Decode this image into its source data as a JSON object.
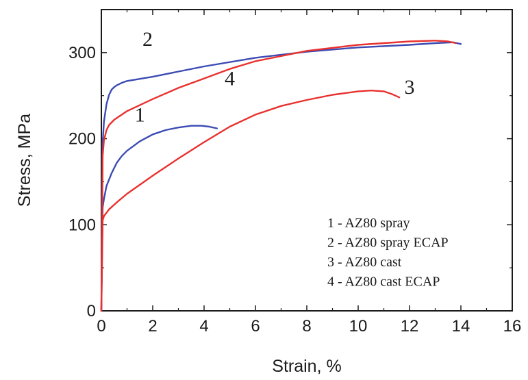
{
  "chart_data": {
    "type": "line",
    "title": "",
    "xlabel": "Strain, %",
    "ylabel": "Stress, MPa",
    "xlim": [
      0,
      16
    ],
    "ylim": [
      0,
      350
    ],
    "xticks": [
      0,
      2,
      4,
      6,
      8,
      10,
      12,
      14,
      16
    ],
    "yticks": [
      0,
      100,
      200,
      300
    ],
    "grid": false,
    "legend_position": "bottom-right",
    "legend": [
      "1 - AZ80 spray",
      "2 - AZ80 spray ECAP",
      "3 - AZ80 cast",
      "4 - AZ80 cast ECAP"
    ],
    "series": [
      {
        "label": "1",
        "color": "#3b4bb3",
        "x": [
          0,
          0.05,
          0.1,
          0.2,
          0.4,
          0.6,
          0.8,
          1.0,
          1.5,
          2.0,
          2.5,
          3.0,
          3.5,
          3.9,
          4.2,
          4.5
        ],
        "y": [
          0,
          120,
          130,
          145,
          160,
          172,
          180,
          186,
          197,
          205,
          210,
          213,
          215,
          215,
          214,
          212
        ]
      },
      {
        "label": "2",
        "color": "#3b4bb3",
        "x": [
          0,
          0.05,
          0.1,
          0.2,
          0.3,
          0.4,
          0.5,
          0.6,
          0.8,
          1.0,
          2.0,
          3.0,
          4.0,
          6.0,
          8.0,
          10.0,
          12.0,
          13.0,
          13.7,
          14.0
        ],
        "y": [
          0,
          195,
          220,
          240,
          251,
          257,
          260,
          262,
          265,
          267,
          272,
          278,
          284,
          294,
          301,
          306,
          309,
          311,
          312,
          310
        ]
      },
      {
        "label": "3",
        "color": "#e8312e",
        "x": [
          0,
          0.05,
          0.1,
          0.3,
          0.6,
          1.0,
          2.0,
          3.0,
          4.0,
          5.0,
          6.0,
          7.0,
          8.0,
          9.0,
          10.0,
          10.5,
          11.0,
          11.3,
          11.6
        ],
        "y": [
          0,
          105,
          110,
          118,
          126,
          136,
          157,
          177,
          196,
          214,
          228,
          238,
          245,
          251,
          255,
          256,
          255,
          252,
          248
        ]
      },
      {
        "label": "4",
        "color": "#e8312e",
        "x": [
          0,
          0.05,
          0.1,
          0.2,
          0.3,
          0.5,
          1.0,
          2.0,
          3.0,
          4.0,
          5.0,
          6.0,
          8.0,
          10.0,
          12.0,
          13.0,
          13.5,
          13.8
        ],
        "y": [
          0,
          180,
          198,
          210,
          216,
          222,
          232,
          246,
          259,
          270,
          281,
          290,
          302,
          309,
          313,
          314,
          313,
          311
        ]
      }
    ],
    "annotations": [
      {
        "text": "1",
        "x": 1.5,
        "y": 220
      },
      {
        "text": "2",
        "x": 1.8,
        "y": 308
      },
      {
        "text": "3",
        "x": 12.0,
        "y": 252
      },
      {
        "text": "4",
        "x": 5.0,
        "y": 262
      }
    ]
  }
}
